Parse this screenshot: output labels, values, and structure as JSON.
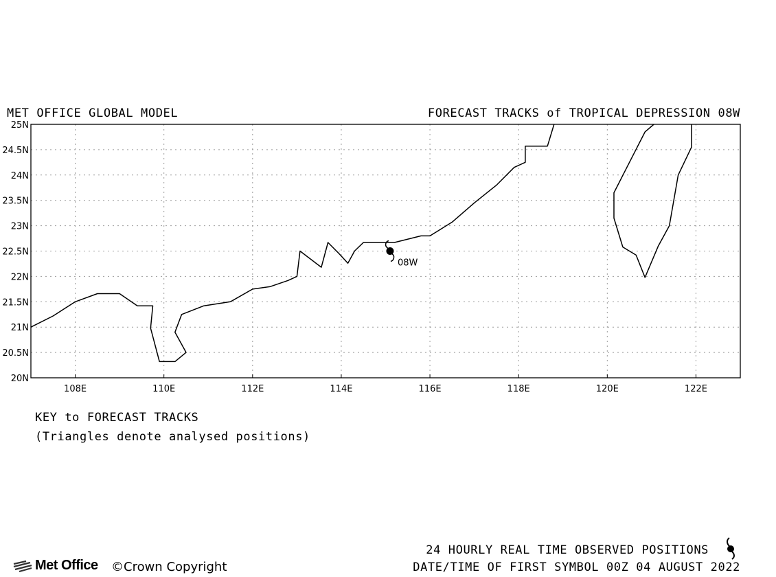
{
  "header": {
    "model": "MET OFFICE GLOBAL MODEL",
    "title": "FORECAST TRACKS of TROPICAL DEPRESSION 08W"
  },
  "map": {
    "lon_range": [
      107,
      123
    ],
    "lat_range": [
      20,
      25
    ],
    "lat_ticks": [
      "20N",
      "20.5N",
      "21N",
      "21.5N",
      "22N",
      "22.5N",
      "23N",
      "23.5N",
      "24N",
      "24.5N",
      "25N"
    ],
    "lon_ticks": [
      "108E",
      "110E",
      "112E",
      "114E",
      "116E",
      "118E",
      "120E",
      "122E"
    ],
    "grid": true,
    "coastline_mainland": [
      [
        107.0,
        21.0
      ],
      [
        107.5,
        21.22
      ],
      [
        108.0,
        21.5
      ],
      [
        108.5,
        21.66
      ],
      [
        109.0,
        21.66
      ],
      [
        109.4,
        21.42
      ],
      [
        109.75,
        21.42
      ],
      [
        109.7,
        20.98
      ],
      [
        109.9,
        20.32
      ],
      [
        110.25,
        20.32
      ],
      [
        110.5,
        20.5
      ],
      [
        110.25,
        20.9
      ],
      [
        110.4,
        21.25
      ],
      [
        110.9,
        21.42
      ],
      [
        111.5,
        21.5
      ],
      [
        112.0,
        21.75
      ],
      [
        112.4,
        21.8
      ],
      [
        112.8,
        21.92
      ],
      [
        113.0,
        22.0
      ],
      [
        113.07,
        22.5
      ],
      [
        113.55,
        22.18
      ],
      [
        113.7,
        22.67
      ],
      [
        113.95,
        22.45
      ],
      [
        114.15,
        22.26
      ],
      [
        114.3,
        22.5
      ],
      [
        114.5,
        22.67
      ],
      [
        115.2,
        22.67
      ],
      [
        115.8,
        22.8
      ],
      [
        116.0,
        22.8
      ],
      [
        116.5,
        23.07
      ],
      [
        117.0,
        23.45
      ],
      [
        117.5,
        23.8
      ],
      [
        117.9,
        24.15
      ],
      [
        118.15,
        24.25
      ],
      [
        118.15,
        24.57
      ],
      [
        118.65,
        24.57
      ],
      [
        118.8,
        25.0
      ]
    ],
    "coastline_taiwan": [
      [
        121.9,
        25.0
      ],
      [
        121.9,
        24.55
      ],
      [
        121.6,
        24.0
      ],
      [
        121.4,
        23.0
      ],
      [
        121.15,
        22.6
      ],
      [
        120.85,
        21.98
      ],
      [
        120.65,
        22.42
      ],
      [
        120.35,
        22.58
      ],
      [
        120.15,
        23.15
      ],
      [
        120.15,
        23.65
      ],
      [
        120.5,
        24.25
      ],
      [
        120.85,
        24.85
      ],
      [
        121.05,
        25.0
      ]
    ],
    "storm": {
      "name": "08W",
      "lon": 115.1,
      "lat": 22.5
    }
  },
  "key": {
    "title": "KEY to FORECAST TRACKS",
    "subtitle": "(Triangles denote analysed positions)"
  },
  "footer": {
    "observed": "24 HOURLY REAL TIME OBSERVED POSITIONS",
    "datetime": "DATE/TIME OF FIRST SYMBOL 00Z 04 AUGUST 2022",
    "logo_text": "Met Office",
    "copyright": "Crown Copyright"
  }
}
